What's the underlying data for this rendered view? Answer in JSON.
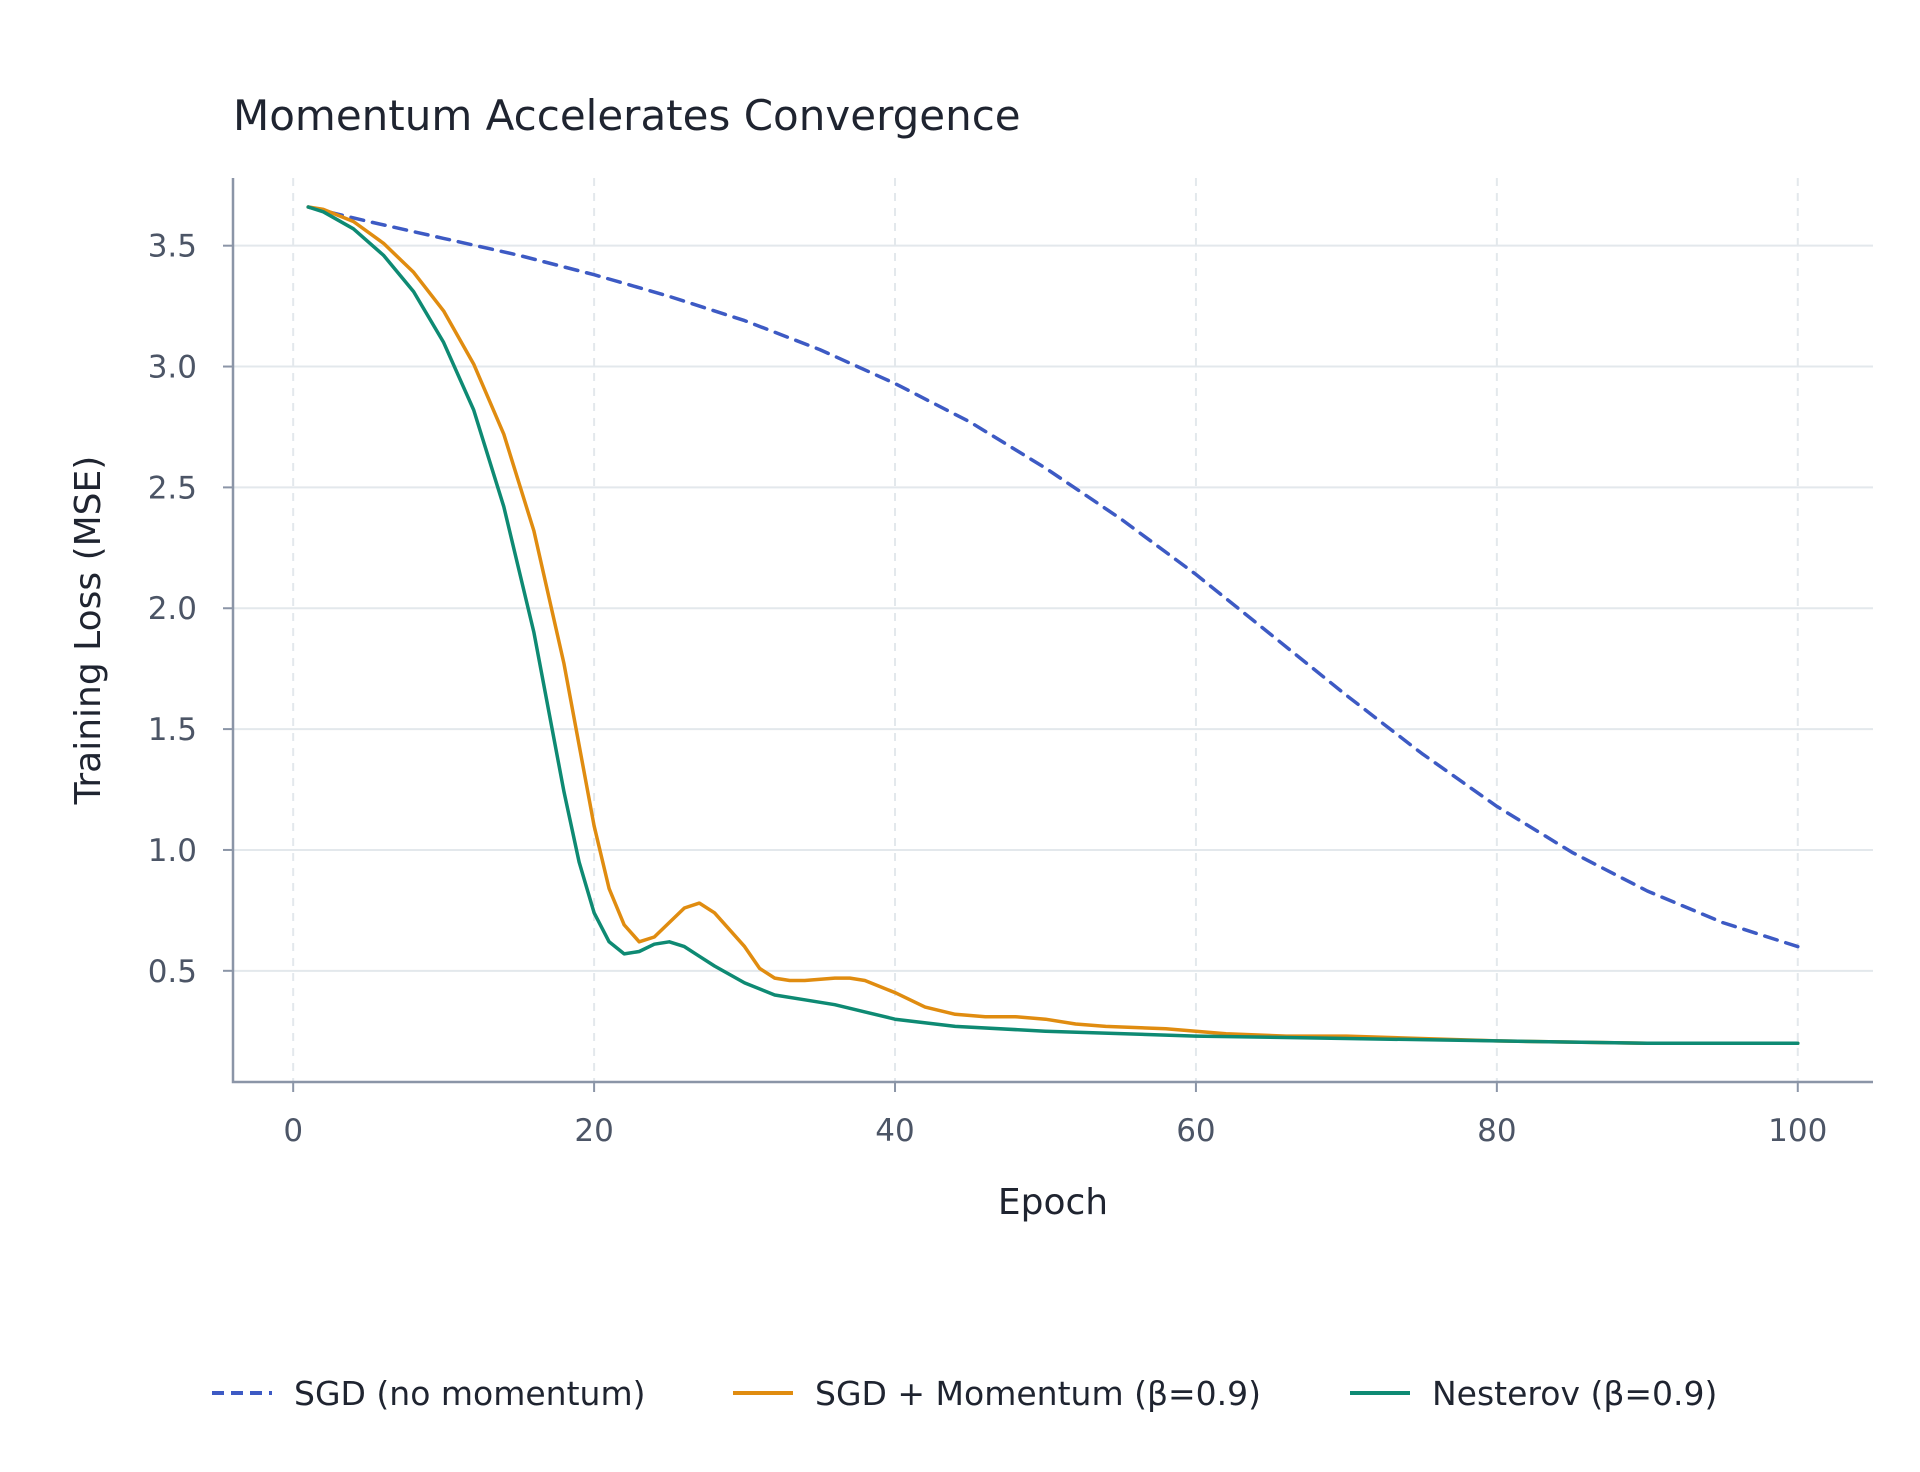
{
  "chart_data": {
    "type": "line",
    "title": "Momentum Accelerates Convergence",
    "xlabel": "Epoch",
    "ylabel": "Training Loss (MSE)",
    "xlim": [
      -4,
      105
    ],
    "ylim": [
      0.04,
      3.78
    ],
    "xticks": [
      0,
      20,
      40,
      60,
      80,
      100
    ],
    "xtick_labels": [
      "0",
      "20",
      "40",
      "60",
      "80",
      "100"
    ],
    "yticks": [
      0.5,
      1.0,
      1.5,
      2.0,
      2.5,
      3.0,
      3.5
    ],
    "ytick_labels": [
      "0.5",
      "1.0",
      "1.5",
      "2.0",
      "2.5",
      "3.0",
      "3.5"
    ],
    "grid": true,
    "legend_position": "bottom",
    "series": [
      {
        "name": "SGD (no momentum)",
        "color": "#3d5ac4",
        "style": "dashed",
        "x": [
          1,
          5,
          10,
          15,
          20,
          25,
          30,
          35,
          40,
          45,
          50,
          55,
          60,
          65,
          70,
          75,
          80,
          85,
          90,
          95,
          100
        ],
        "y": [
          3.66,
          3.6,
          3.53,
          3.46,
          3.38,
          3.29,
          3.19,
          3.07,
          2.93,
          2.77,
          2.58,
          2.37,
          2.14,
          1.89,
          1.64,
          1.4,
          1.18,
          0.99,
          0.83,
          0.7,
          0.6
        ]
      },
      {
        "name": "SGD + Momentum (β=0.9)",
        "color": "#e08c10",
        "style": "solid",
        "x": [
          1,
          2,
          4,
          6,
          8,
          10,
          12,
          14,
          16,
          18,
          20,
          21,
          22,
          23,
          24,
          26,
          27,
          28,
          30,
          31,
          32,
          33,
          34,
          36,
          37,
          38,
          40,
          42,
          44,
          46,
          48,
          50,
          52,
          54,
          58,
          62,
          66,
          70,
          80,
          90,
          100
        ],
        "y": [
          3.66,
          3.65,
          3.6,
          3.51,
          3.39,
          3.23,
          3.01,
          2.72,
          2.32,
          1.77,
          1.1,
          0.84,
          0.69,
          0.62,
          0.64,
          0.76,
          0.78,
          0.74,
          0.6,
          0.51,
          0.47,
          0.46,
          0.46,
          0.47,
          0.47,
          0.46,
          0.41,
          0.35,
          0.32,
          0.31,
          0.31,
          0.3,
          0.28,
          0.27,
          0.26,
          0.24,
          0.23,
          0.23,
          0.21,
          0.2,
          0.2
        ]
      },
      {
        "name": "Nesterov (β=0.9)",
        "color": "#0e8a73",
        "style": "solid",
        "x": [
          1,
          2,
          4,
          6,
          8,
          10,
          12,
          14,
          16,
          18,
          19,
          20,
          21,
          22,
          23,
          24,
          25,
          26,
          27,
          28,
          30,
          32,
          34,
          36,
          38,
          40,
          44,
          50,
          60,
          70,
          80,
          90,
          100
        ],
        "y": [
          3.66,
          3.64,
          3.57,
          3.46,
          3.31,
          3.1,
          2.82,
          2.42,
          1.9,
          1.24,
          0.95,
          0.74,
          0.62,
          0.57,
          0.58,
          0.61,
          0.62,
          0.6,
          0.56,
          0.52,
          0.45,
          0.4,
          0.38,
          0.36,
          0.33,
          0.3,
          0.27,
          0.25,
          0.23,
          0.22,
          0.21,
          0.2,
          0.2
        ]
      }
    ]
  }
}
